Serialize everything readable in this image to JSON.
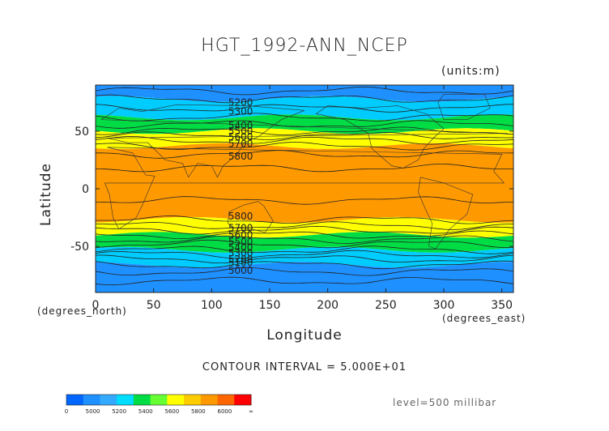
{
  "chart_data": {
    "type": "contour-map",
    "title": "HGT_1992-ANN_NCEP",
    "units": "(units:m)",
    "xlabel": "Longitude",
    "ylabel": "Latitude",
    "x_unit_label": "(degrees_east)",
    "y_unit_label": "(degrees_north)",
    "xlim": [
      0,
      360
    ],
    "ylim": [
      -90,
      90
    ],
    "x_ticks": [
      0,
      50,
      100,
      150,
      200,
      250,
      300,
      350
    ],
    "y_ticks": [
      -50,
      0,
      50
    ],
    "contour_interval_text": "CONTOUR INTERVAL = 5.000E+01",
    "level_text": "level=500 millibar",
    "contour_labels": [
      {
        "text": "5200",
        "lon": 125,
        "lat": 75
      },
      {
        "text": "5300",
        "lon": 125,
        "lat": 67
      },
      {
        "text": "5400",
        "lon": 125,
        "lat": 55
      },
      {
        "text": "5500",
        "lon": 125,
        "lat": 50
      },
      {
        "text": "5600",
        "lon": 125,
        "lat": 45
      },
      {
        "text": "5700",
        "lon": 125,
        "lat": 39
      },
      {
        "text": "5800",
        "lon": 125,
        "lat": 28
      },
      {
        "text": "5800",
        "lon": 125,
        "lat": -24
      },
      {
        "text": "5700",
        "lon": 125,
        "lat": -34
      },
      {
        "text": "5600",
        "lon": 125,
        "lat": -40
      },
      {
        "text": "5500",
        "lon": 125,
        "lat": -46
      },
      {
        "text": "5400",
        "lon": 125,
        "lat": -51
      },
      {
        "text": "5300",
        "lon": 125,
        "lat": -56
      },
      {
        "text": "5200",
        "lon": 125,
        "lat": -61
      },
      {
        "text": "5100",
        "lon": 125,
        "lat": -64
      },
      {
        "text": "5000",
        "lon": 125,
        "lat": -71
      }
    ],
    "bands": [
      {
        "lat_from": 90,
        "lat_to": 78,
        "color": "#1e90ff"
      },
      {
        "lat_from": 78,
        "lat_to": 62,
        "color": "#00ccff"
      },
      {
        "lat_from": 62,
        "lat_to": 50,
        "color": "#00dd44"
      },
      {
        "lat_from": 50,
        "lat_to": 37,
        "color": "#ffff00"
      },
      {
        "lat_from": 37,
        "lat_to": -27,
        "color": "#ff9900"
      },
      {
        "lat_from": -27,
        "lat_to": -40,
        "color": "#ffff00"
      },
      {
        "lat_from": -40,
        "lat_to": -53,
        "color": "#00dd44"
      },
      {
        "lat_from": -53,
        "lat_to": -66,
        "color": "#00ccff"
      },
      {
        "lat_from": -66,
        "lat_to": -90,
        "color": "#1e90ff"
      }
    ],
    "colorbar": {
      "colors": [
        "#0066ff",
        "#1e90ff",
        "#33aaff",
        "#00ddff",
        "#00dd44",
        "#66ff33",
        "#ffff00",
        "#ffcc00",
        "#ff9900",
        "#ff6600",
        "#ff0000"
      ],
      "tick_labels": [
        "0",
        "5000",
        "5200",
        "5400",
        "5600",
        "5800",
        "6000",
        "∞"
      ]
    }
  }
}
